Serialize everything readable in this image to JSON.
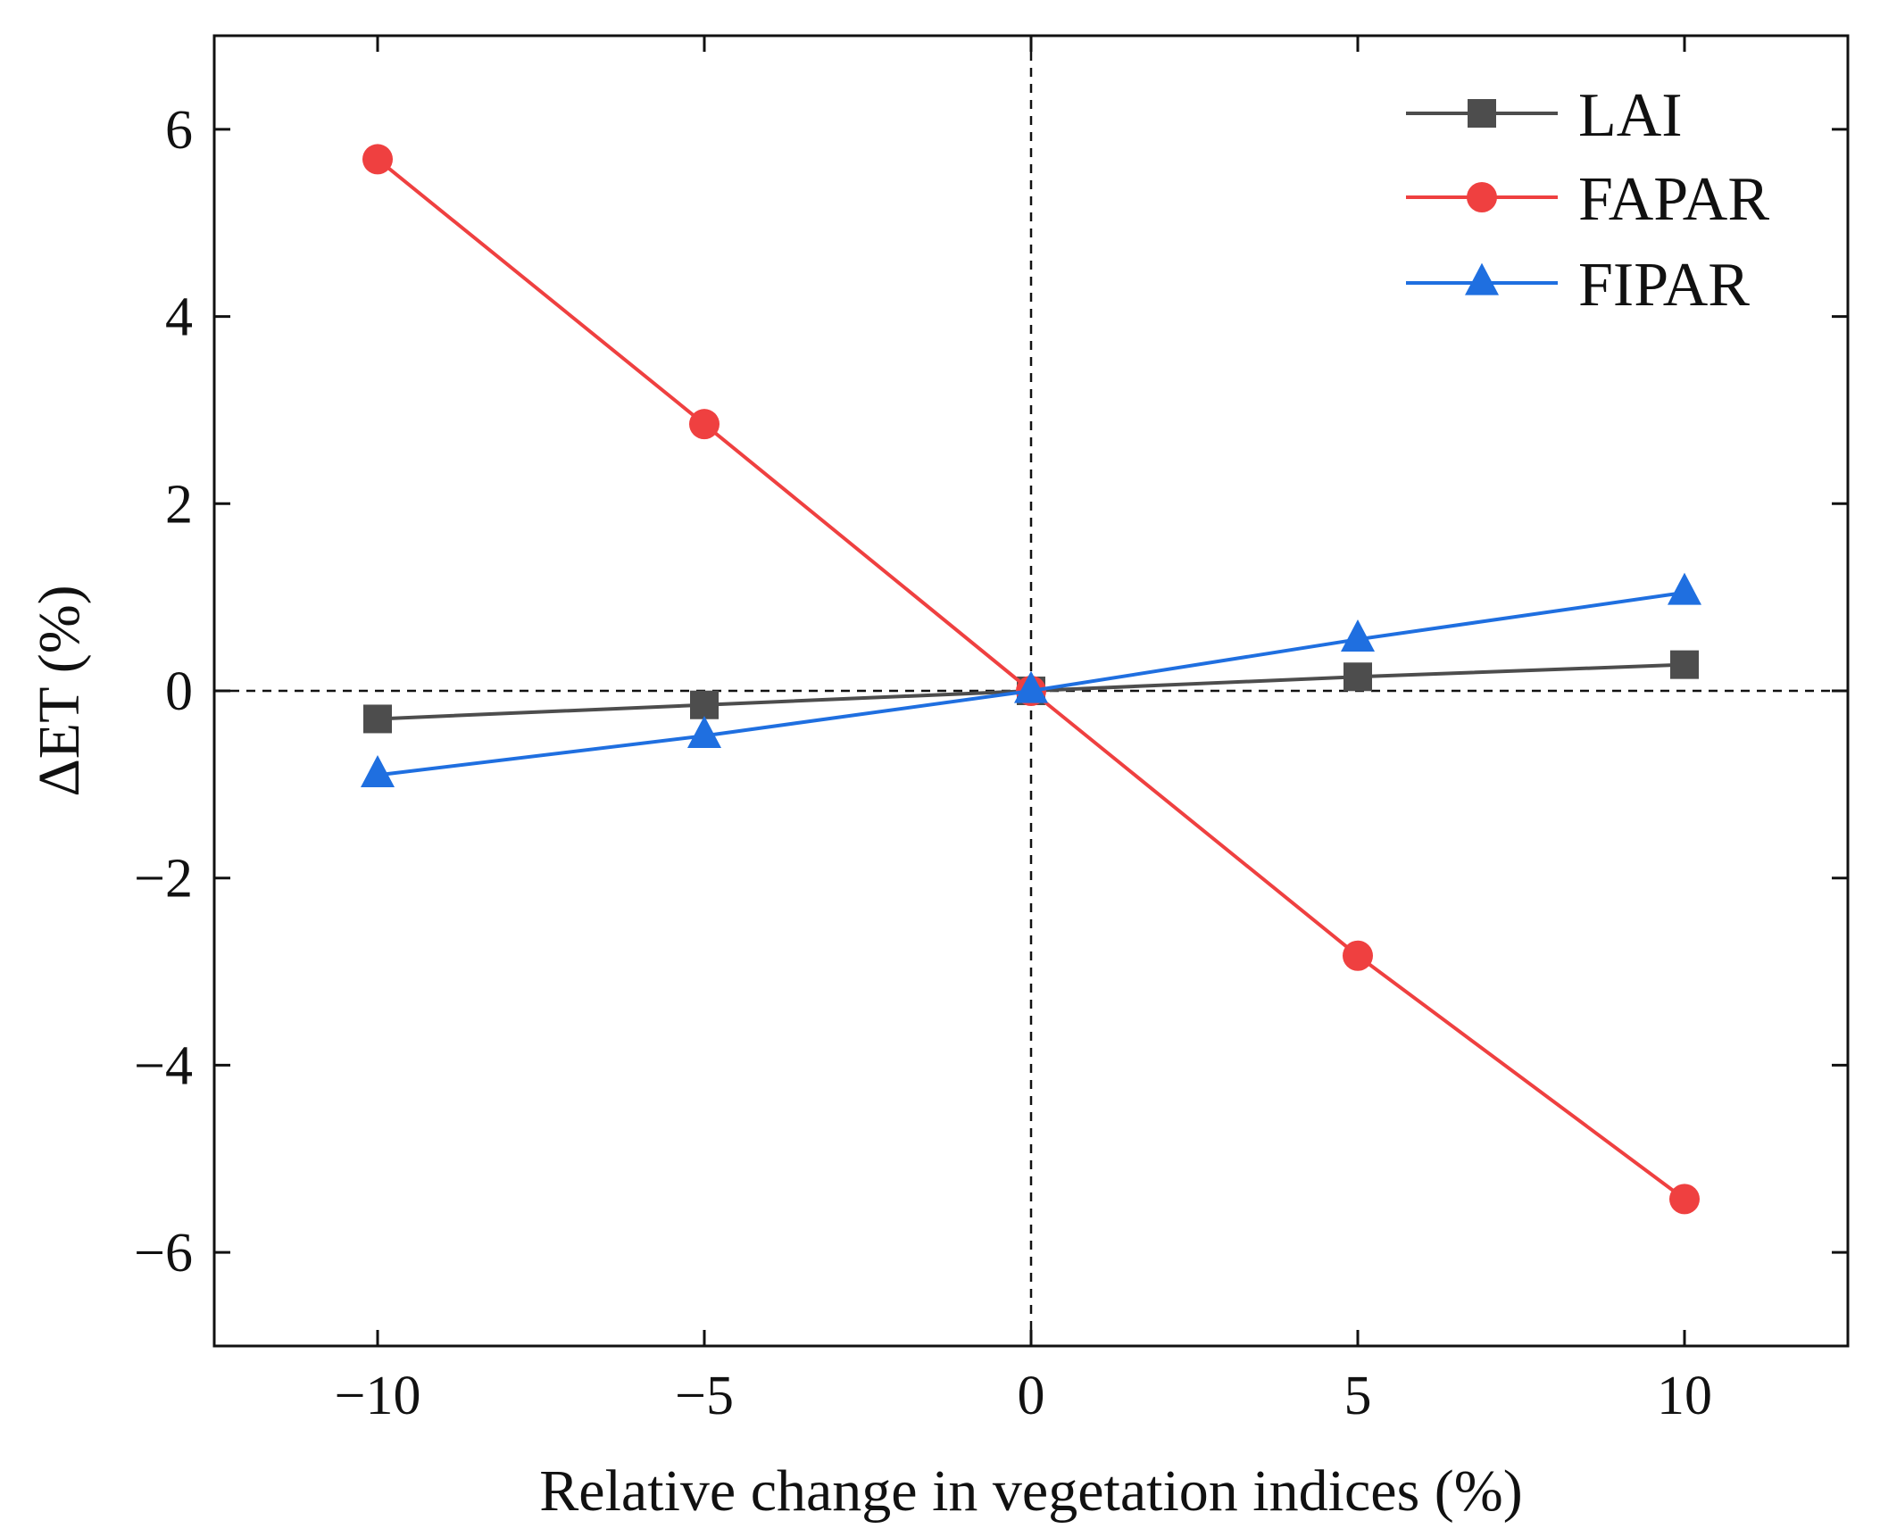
{
  "chart_data": {
    "type": "line",
    "title": "",
    "xlabel": "Relative change in vegetation indices (%)",
    "ylabel": "ΔET (%)",
    "xlim": [
      -12.5,
      12.5
    ],
    "ylim": [
      -7,
      7
    ],
    "xticks": [
      -10,
      -5,
      0,
      5,
      10
    ],
    "xtick_labels": [
      "−10",
      "−5",
      "0",
      "5",
      "10"
    ],
    "yticks": [
      -6,
      -4,
      -2,
      0,
      2,
      4,
      6
    ],
    "ytick_labels": [
      "−6",
      "−4",
      "−2",
      "0",
      "2",
      "4",
      "6"
    ],
    "reference_lines": {
      "x": 0,
      "y": 0,
      "style": "dashed"
    },
    "legend_position": "top-right",
    "x": [
      -10,
      -5,
      0,
      5,
      10
    ],
    "series": [
      {
        "name": "LAI",
        "color": "#4d4d4d",
        "marker": "square",
        "values": [
          -0.3,
          -0.15,
          0,
          0.15,
          0.28
        ]
      },
      {
        "name": "FAPAR",
        "color": "#ef4040",
        "marker": "circle",
        "values": [
          5.68,
          2.85,
          0,
          -2.83,
          -5.43
        ]
      },
      {
        "name": "FIPAR",
        "color": "#1f6fe0",
        "marker": "triangle",
        "values": [
          -0.9,
          -0.48,
          0,
          0.55,
          1.05
        ]
      }
    ]
  }
}
